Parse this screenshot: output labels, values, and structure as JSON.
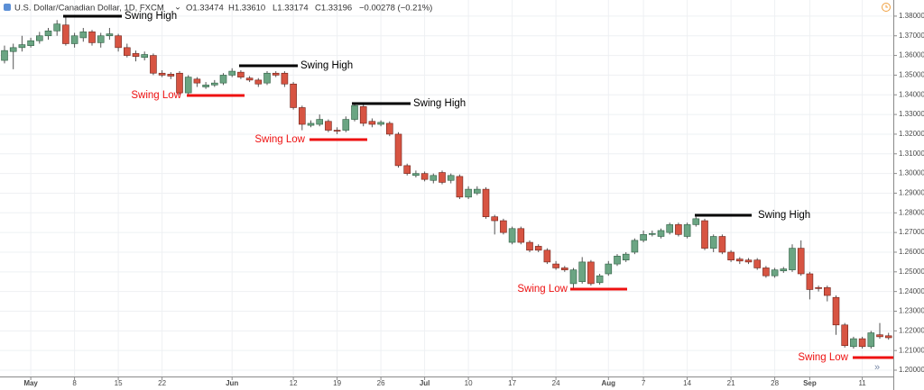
{
  "chart_data": {
    "type": "candlestick",
    "title": "U.S. Dollar/Canadian Dollar, 1D, FXCM",
    "header_values": [
      "O1.33474",
      "H1.33610",
      "L1.33174",
      "C1.33196",
      "−0.00278 (−0.21%)"
    ],
    "categories": [
      null,
      null,
      null,
      "May",
      null,
      null,
      null,
      null,
      "8",
      null,
      null,
      null,
      null,
      "15",
      null,
      null,
      null,
      null,
      "22",
      null,
      null,
      null,
      null,
      null,
      null,
      null,
      "Jun",
      null,
      null,
      null,
      null,
      null,
      null,
      "12",
      null,
      null,
      null,
      null,
      "19",
      null,
      null,
      null,
      null,
      "26",
      null,
      null,
      null,
      null,
      "Jul",
      null,
      null,
      null,
      null,
      "10",
      null,
      null,
      null,
      null,
      "17",
      null,
      null,
      null,
      null,
      "24",
      null,
      null,
      null,
      null,
      null,
      "Aug",
      null,
      null,
      null,
      "7",
      null,
      null,
      null,
      null,
      "14",
      null,
      null,
      null,
      null,
      "21",
      null,
      null,
      null,
      null,
      "28",
      null,
      null,
      null,
      "Sep",
      null,
      null,
      null,
      null,
      null,
      "11",
      null,
      null,
      null
    ],
    "open": [
      1.3575,
      1.362,
      1.364,
      1.365,
      1.3675,
      1.37,
      1.3725,
      1.3755,
      1.366,
      1.369,
      1.372,
      1.3665,
      1.37,
      1.37,
      1.364,
      1.361,
      1.359,
      1.36,
      1.351,
      1.3505,
      1.351,
      1.341,
      1.348,
      1.344,
      1.345,
      1.346,
      1.35,
      1.3515,
      1.3485,
      1.3475,
      1.346,
      1.351,
      1.351,
      1.3455,
      1.3335,
      1.3245,
      1.325,
      1.3265,
      1.322,
      1.322,
      1.3275,
      1.334,
      1.3265,
      1.325,
      1.3255,
      1.32,
      1.304,
      1.299,
      1.3,
      1.2965,
      1.3005,
      1.2965,
      1.2985,
      1.288,
      1.29,
      1.292,
      1.278,
      1.276,
      1.265,
      1.272,
      1.265,
      1.263,
      1.261,
      1.254,
      1.252,
      1.244,
      1.245,
      1.255,
      1.2445,
      1.249,
      1.254,
      1.256,
      1.26,
      1.266,
      1.269,
      1.268,
      1.27,
      1.274,
      1.268,
      1.274,
      1.276,
      1.262,
      1.268,
      1.26,
      1.2565,
      1.256,
      1.256,
      1.252,
      1.248,
      1.2505,
      1.251,
      1.262,
      1.249,
      1.242,
      1.242,
      1.237,
      1.223,
      1.212,
      1.216,
      1.212,
      1.218,
      1.2175
    ],
    "high": [
      1.365,
      1.366,
      1.37,
      1.369,
      1.372,
      1.374,
      1.378,
      1.38,
      1.3715,
      1.374,
      1.373,
      1.3715,
      1.374,
      1.371,
      1.366,
      1.3625,
      1.362,
      1.361,
      1.3525,
      1.3515,
      1.352,
      1.35,
      1.349,
      1.3465,
      1.3475,
      1.351,
      1.3535,
      1.3525,
      1.3495,
      1.3485,
      1.352,
      1.352,
      1.352,
      1.3465,
      1.3345,
      1.327,
      1.33,
      1.3275,
      1.3235,
      1.329,
      1.3355,
      1.335,
      1.328,
      1.327,
      1.3265,
      1.321,
      1.305,
      1.3015,
      1.301,
      1.3,
      1.3015,
      1.3,
      1.2995,
      1.2935,
      1.2935,
      1.293,
      1.279,
      1.277,
      1.273,
      1.273,
      1.266,
      1.264,
      1.262,
      1.2555,
      1.253,
      1.252,
      1.2575,
      1.256,
      1.249,
      1.2555,
      1.259,
      1.26,
      1.267,
      1.271,
      1.271,
      1.272,
      1.275,
      1.275,
      1.275,
      1.278,
      1.277,
      1.269,
      1.269,
      1.261,
      1.2575,
      1.257,
      1.257,
      1.253,
      1.252,
      1.2525,
      1.264,
      1.266,
      1.25,
      1.243,
      1.243,
      1.238,
      1.224,
      1.217,
      1.217,
      1.22,
      1.224,
      1.219
    ],
    "low": [
      1.356,
      1.353,
      1.362,
      1.364,
      1.366,
      1.368,
      1.37,
      1.365,
      1.364,
      1.367,
      1.365,
      1.364,
      1.368,
      1.362,
      1.359,
      1.357,
      1.3575,
      1.35,
      1.349,
      1.348,
      1.34,
      1.34,
      1.344,
      1.343,
      1.344,
      1.345,
      1.349,
      1.348,
      1.3465,
      1.344,
      1.345,
      1.349,
      1.344,
      1.3325,
      1.322,
      1.3235,
      1.324,
      1.321,
      1.32,
      1.321,
      1.3265,
      1.324,
      1.3235,
      1.324,
      1.319,
      1.303,
      1.299,
      1.298,
      1.296,
      1.295,
      1.2945,
      1.295,
      1.287,
      1.287,
      1.289,
      1.277,
      1.269,
      1.269,
      1.264,
      1.264,
      1.26,
      1.26,
      1.254,
      1.251,
      1.25,
      1.2415,
      1.244,
      1.243,
      1.2435,
      1.248,
      1.253,
      1.255,
      1.259,
      1.265,
      1.268,
      1.267,
      1.269,
      1.268,
      1.267,
      1.273,
      1.261,
      1.26,
      1.259,
      1.255,
      1.254,
      1.254,
      1.251,
      1.247,
      1.247,
      1.2495,
      1.25,
      1.248,
      1.236,
      1.24,
      1.235,
      1.218,
      1.2115,
      1.211,
      1.211,
      1.211,
      1.216,
      1.2155
    ],
    "close": [
      1.3625,
      1.364,
      1.3655,
      1.3675,
      1.37,
      1.3725,
      1.376,
      1.366,
      1.37,
      1.372,
      1.3665,
      1.37,
      1.371,
      1.364,
      1.36,
      1.3595,
      1.3605,
      1.351,
      1.35,
      1.3495,
      1.341,
      1.349,
      1.346,
      1.345,
      1.346,
      1.35,
      1.352,
      1.349,
      1.3475,
      1.3455,
      1.351,
      1.35,
      1.3455,
      1.3335,
      1.325,
      1.3255,
      1.3275,
      1.322,
      1.3215,
      1.3275,
      1.3345,
      1.3255,
      1.325,
      1.326,
      1.32,
      1.304,
      1.3,
      1.3,
      1.297,
      1.299,
      1.2955,
      1.299,
      1.288,
      1.292,
      1.292,
      1.278,
      1.276,
      1.27,
      1.272,
      1.265,
      1.261,
      1.261,
      1.255,
      1.252,
      1.251,
      1.251,
      1.255,
      1.244,
      1.248,
      1.254,
      1.258,
      1.259,
      1.266,
      1.269,
      1.2695,
      1.271,
      1.274,
      1.269,
      1.274,
      1.277,
      1.262,
      1.268,
      1.26,
      1.256,
      1.2555,
      1.255,
      1.252,
      1.248,
      1.251,
      1.2515,
      1.262,
      1.249,
      1.241,
      1.2415,
      1.238,
      1.223,
      1.2125,
      1.216,
      1.212,
      1.219,
      1.217,
      1.2165
    ],
    "up_color": "#6ba583",
    "down_color": "#d75442",
    "ylim": [
      1.1968,
      1.3882
    ],
    "yticks": [
      {
        "value": 1.2,
        "label": "1.20000"
      },
      {
        "value": 1.21,
        "label": "1.21000"
      },
      {
        "value": 1.22,
        "label": "1.22000"
      },
      {
        "value": 1.23,
        "label": "1.23000"
      },
      {
        "value": 1.24,
        "label": "1.24000"
      },
      {
        "value": 1.25,
        "label": "1.25000"
      },
      {
        "value": 1.26,
        "label": "1.26000"
      },
      {
        "value": 1.27,
        "label": "1.27000"
      },
      {
        "value": 1.28,
        "label": "1.28000"
      },
      {
        "value": 1.29,
        "label": "1.29000"
      },
      {
        "value": 1.3,
        "label": "1.30000"
      },
      {
        "value": 1.31,
        "label": "1.31000"
      },
      {
        "value": 1.32,
        "label": "1.32000"
      },
      {
        "value": 1.33,
        "label": "1.33000"
      },
      {
        "value": 1.34,
        "label": "1.34000"
      },
      {
        "value": 1.35,
        "label": "1.35000"
      },
      {
        "value": 1.36,
        "label": "1.36000"
      },
      {
        "value": 1.37,
        "label": "1.37000"
      },
      {
        "value": 1.38,
        "label": "1.38000"
      }
    ],
    "grid": true,
    "annotations": [
      {
        "text": "Swing High",
        "color": "#000000"
      },
      {
        "text": "Swing High",
        "color": "#000000"
      },
      {
        "text": "Swing High",
        "color": "#000000"
      },
      {
        "text": "Swing High",
        "color": "#000000"
      },
      {
        "text": "Swing Low",
        "color": "#ee1111"
      },
      {
        "text": "Swing Low",
        "color": "#ee1111"
      },
      {
        "text": "Swing Low",
        "color": "#ee1111"
      },
      {
        "text": "Swing Low",
        "color": "#ee1111"
      }
    ]
  }
}
